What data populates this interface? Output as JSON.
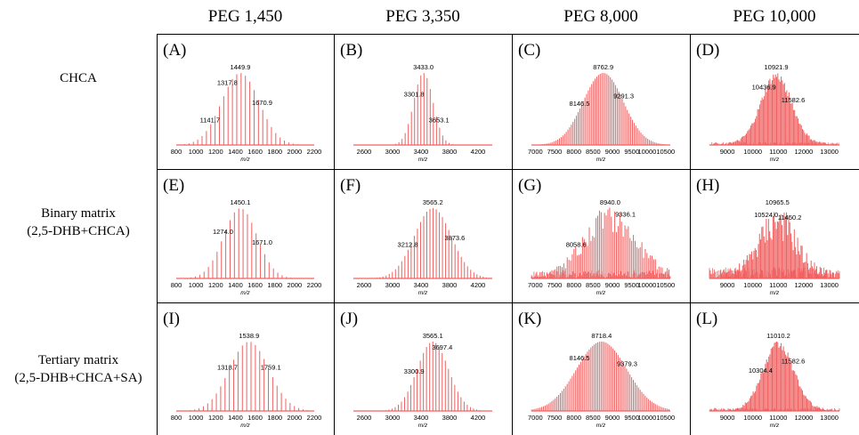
{
  "columns": [
    "PEG 1,450",
    "PEG 3,350",
    "PEG 8,000",
    "PEG 10,000"
  ],
  "rows": [
    {
      "line1": "CHCA",
      "line2": ""
    },
    {
      "line1": "Binary matrix",
      "line2": "(2,5-DHB+CHCA)"
    },
    {
      "line1": "Tertiary matrix",
      "line2": "(2,5-DHB+CHCA+SA)"
    }
  ],
  "colors": {
    "spectrum": "#f06060",
    "grid": "#000000"
  },
  "chart_data": [
    {
      "type": "bar",
      "panel": "(A)",
      "xlim": [
        800,
        2200
      ],
      "ticks": [
        "800",
        "1000",
        "1200",
        "1400",
        "1600",
        "1800",
        "2000",
        "2200"
      ],
      "xlabel": "m/z",
      "center": 1449.9,
      "sigma": 190,
      "spacing": 44,
      "noise": 0,
      "peaks": [
        {
          "x": 1141.7,
          "label": "1141.7"
        },
        {
          "x": 1317.8,
          "label": "1317.8"
        },
        {
          "x": 1449.9,
          "label": "1449.9"
        },
        {
          "x": 1670.9,
          "label": "1670.9"
        }
      ]
    },
    {
      "type": "bar",
      "panel": "(B)",
      "xlim": [
        2450,
        4400
      ],
      "ticks": [
        "2600",
        "3000",
        "3400",
        "3800",
        "4200"
      ],
      "xlabel": "m/z",
      "center": 3433.0,
      "sigma": 135,
      "spacing": 44,
      "noise": 0,
      "peaks": [
        {
          "x": 3301.8,
          "label": "3301.8"
        },
        {
          "x": 3433.0,
          "label": "3433.0"
        },
        {
          "x": 3653.1,
          "label": "3653.1"
        }
      ]
    },
    {
      "type": "bar",
      "panel": "(C)",
      "xlim": [
        6900,
        10500
      ],
      "ticks": [
        "7000",
        "7500",
        "8000",
        "8500",
        "9000",
        "9500",
        "1000010500"
      ],
      "xlabel": "m/z",
      "center": 8762.9,
      "sigma": 520,
      "spacing": 44,
      "noise": 0,
      "peaks": [
        {
          "x": 8146.5,
          "label": "8146.5"
        },
        {
          "x": 8762.9,
          "label": "8762.9"
        },
        {
          "x": 9291.3,
          "label": "9291.3"
        }
      ]
    },
    {
      "type": "bar",
      "panel": "(D)",
      "xlim": [
        8300,
        13400
      ],
      "ticks": [
        "9000",
        "10000",
        "11000",
        "12000",
        "13000"
      ],
      "xlabel": "m/z",
      "center": 10921.9,
      "sigma": 600,
      "spacing": 44,
      "noise": 0.12,
      "peaks": [
        {
          "x": 10436.9,
          "label": "10436.9"
        },
        {
          "x": 10921.9,
          "label": "10921.9"
        },
        {
          "x": 11582.6,
          "label": "11582.6"
        }
      ]
    },
    {
      "type": "bar",
      "panel": "(E)",
      "xlim": [
        800,
        2200
      ],
      "ticks": [
        "800",
        "1000",
        "1200",
        "1400",
        "1600",
        "1800",
        "2000",
        "2200"
      ],
      "xlabel": "m/z",
      "center": 1450.1,
      "sigma": 170,
      "spacing": 44,
      "noise": 0,
      "peaks": [
        {
          "x": 1274.0,
          "label": "1274.0"
        },
        {
          "x": 1450.1,
          "label": "1450.1"
        },
        {
          "x": 1671.0,
          "label": "1671.0"
        }
      ]
    },
    {
      "type": "bar",
      "panel": "(F)",
      "xlim": [
        2450,
        4400
      ],
      "ticks": [
        "2600",
        "3000",
        "3400",
        "3800",
        "4200"
      ],
      "xlabel": "m/z",
      "center": 3565.2,
      "sigma": 260,
      "spacing": 44,
      "noise": 0,
      "peaks": [
        {
          "x": 3212.8,
          "label": "3212.8"
        },
        {
          "x": 3565.2,
          "label": "3565.2"
        },
        {
          "x": 3873.6,
          "label": "3873.6"
        }
      ]
    },
    {
      "type": "bar",
      "panel": "(G)",
      "xlim": [
        6900,
        10500
      ],
      "ticks": [
        "7000",
        "7500",
        "8000",
        "8500",
        "9000",
        "9500",
        "1000010500"
      ],
      "xlabel": "m/z",
      "center": 8940.0,
      "sigma": 650,
      "spacing": 44,
      "noise": 0.35,
      "peaks": [
        {
          "x": 8058.6,
          "label": "8058.6"
        },
        {
          "x": 8940.0,
          "label": "8940.0"
        },
        {
          "x": 9336.1,
          "label": "9336.1"
        }
      ]
    },
    {
      "type": "bar",
      "panel": "(H)",
      "xlim": [
        8300,
        13400
      ],
      "ticks": [
        "9000",
        "10000",
        "11000",
        "12000",
        "13000"
      ],
      "xlabel": "m/z",
      "center": 10965.5,
      "sigma": 700,
      "spacing": 44,
      "noise": 0.45,
      "peaks": [
        {
          "x": 10524.0,
          "label": "10524.0"
        },
        {
          "x": 10965.5,
          "label": "10965.5"
        },
        {
          "x": 11450.2,
          "label": "11450.2"
        }
      ]
    },
    {
      "type": "bar",
      "panel": "(I)",
      "xlim": [
        800,
        2200
      ],
      "ticks": [
        "800",
        "1000",
        "1200",
        "1400",
        "1600",
        "1800",
        "2000",
        "2200"
      ],
      "xlabel": "m/z",
      "center": 1538.9,
      "sigma": 200,
      "spacing": 44,
      "noise": 0,
      "peaks": [
        {
          "x": 1318.7,
          "label": "1318.7"
        },
        {
          "x": 1538.9,
          "label": "1538.9"
        },
        {
          "x": 1759.1,
          "label": "1759.1"
        }
      ]
    },
    {
      "type": "bar",
      "panel": "(J)",
      "xlim": [
        2450,
        4400
      ],
      "ticks": [
        "2600",
        "3000",
        "3400",
        "3800",
        "4200"
      ],
      "xlabel": "m/z",
      "center": 3565.1,
      "sigma": 220,
      "spacing": 44,
      "noise": 0,
      "peaks": [
        {
          "x": 3300.9,
          "label": "3300.9"
        },
        {
          "x": 3565.1,
          "label": "3565.1"
        },
        {
          "x": 3697.4,
          "label": "3697.4"
        }
      ]
    },
    {
      "type": "bar",
      "panel": "(K)",
      "xlim": [
        6900,
        10500
      ],
      "ticks": [
        "7000",
        "7500",
        "8000",
        "8500",
        "9000",
        "9500",
        "1000010500"
      ],
      "xlabel": "m/z",
      "center": 8718.4,
      "sigma": 650,
      "spacing": 44,
      "noise": 0,
      "peaks": [
        {
          "x": 8146.5,
          "label": "8146.5"
        },
        {
          "x": 8718.4,
          "label": "8718.4"
        },
        {
          "x": 9379.3,
          "label": "9379.3"
        }
      ]
    },
    {
      "type": "bar",
      "panel": "(L)",
      "xlim": [
        8300,
        13400
      ],
      "ticks": [
        "9000",
        "10000",
        "11000",
        "12000",
        "13000"
      ],
      "xlabel": "m/z",
      "center": 11010.2,
      "sigma": 600,
      "spacing": 44,
      "noise": 0.12,
      "peaks": [
        {
          "x": 10304.4,
          "label": "10304.4"
        },
        {
          "x": 11010.2,
          "label": "11010.2"
        },
        {
          "x": 11582.6,
          "label": "11582.6"
        }
      ]
    }
  ]
}
